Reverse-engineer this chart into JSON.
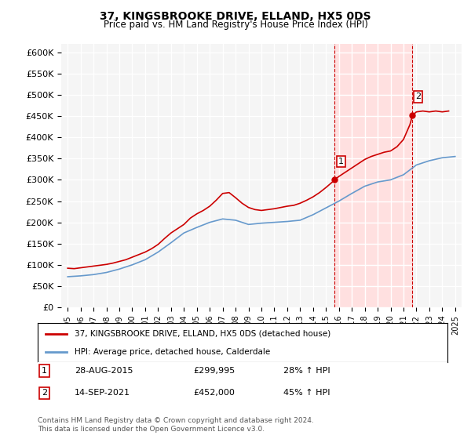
{
  "title": "37, KINGSBROOKE DRIVE, ELLAND, HX5 0DS",
  "subtitle": "Price paid vs. HM Land Registry's House Price Index (HPI)",
  "property_label": "37, KINGSBROOKE DRIVE, ELLAND, HX5 0DS (detached house)",
  "hpi_label": "HPI: Average price, detached house, Calderdale",
  "transaction1_label": "1",
  "transaction1_date": "28-AUG-2015",
  "transaction1_price": "£299,995",
  "transaction1_hpi": "28% ↑ HPI",
  "transaction2_label": "2",
  "transaction2_date": "14-SEP-2021",
  "transaction2_price": "£452,000",
  "transaction2_hpi": "45% ↑ HPI",
  "footer": "Contains HM Land Registry data © Crown copyright and database right 2024.\nThis data is licensed under the Open Government Licence v3.0.",
  "property_color": "#cc0000",
  "hpi_color": "#6699cc",
  "highlight_color": "#ffe0e0",
  "dashed_line_color": "#cc0000",
  "transaction1_x": 2015.65,
  "transaction2_x": 2021.7,
  "ylim_min": 0,
  "ylim_max": 620000,
  "yticks": [
    0,
    50000,
    100000,
    150000,
    200000,
    250000,
    300000,
    350000,
    400000,
    450000,
    500000,
    550000,
    600000
  ],
  "xlim_min": 1994.5,
  "xlim_max": 2025.5,
  "background_color": "#ffffff",
  "plot_bg_color": "#f5f5f5",
  "grid_color": "#ffffff",
  "years": [
    1995,
    1996,
    1997,
    1998,
    1999,
    2000,
    2001,
    2002,
    2003,
    2004,
    2005,
    2006,
    2007,
    2008,
    2009,
    2010,
    2011,
    2012,
    2013,
    2014,
    2015,
    2016,
    2017,
    2018,
    2019,
    2020,
    2021,
    2022,
    2023,
    2024,
    2025
  ],
  "hpi_values": [
    72000,
    74000,
    77000,
    82000,
    90000,
    100000,
    112000,
    130000,
    152000,
    175000,
    188000,
    200000,
    208000,
    205000,
    195000,
    198000,
    200000,
    202000,
    205000,
    218000,
    234000,
    250000,
    268000,
    285000,
    295000,
    300000,
    312000,
    335000,
    345000,
    352000,
    355000
  ],
  "property_values_x": [
    1995.0,
    1995.5,
    1996.0,
    1996.5,
    1997.0,
    1997.5,
    1998.0,
    1998.5,
    1999.0,
    1999.5,
    2000.0,
    2000.5,
    2001.0,
    2001.5,
    2002.0,
    2002.5,
    2003.0,
    2003.5,
    2004.0,
    2004.5,
    2005.0,
    2005.5,
    2006.0,
    2006.5,
    2007.0,
    2007.5,
    2008.0,
    2008.5,
    2009.0,
    2009.5,
    2010.0,
    2010.5,
    2011.0,
    2011.5,
    2012.0,
    2012.5,
    2013.0,
    2013.5,
    2014.0,
    2014.5,
    2015.0,
    2015.5,
    2015.65,
    2016.0,
    2016.5,
    2017.0,
    2017.5,
    2018.0,
    2018.5,
    2019.0,
    2019.5,
    2020.0,
    2020.5,
    2021.0,
    2021.5,
    2021.7,
    2022.0,
    2022.5,
    2023.0,
    2023.5,
    2024.0,
    2024.5
  ],
  "property_values_y": [
    92000,
    91000,
    93000,
    95000,
    97000,
    99000,
    101000,
    104000,
    108000,
    112000,
    118000,
    124000,
    130000,
    138000,
    148000,
    162000,
    175000,
    185000,
    195000,
    210000,
    220000,
    228000,
    238000,
    252000,
    268000,
    270000,
    258000,
    245000,
    235000,
    230000,
    228000,
    230000,
    232000,
    235000,
    238000,
    240000,
    245000,
    252000,
    260000,
    270000,
    282000,
    295000,
    299995,
    308000,
    318000,
    328000,
    338000,
    348000,
    355000,
    360000,
    365000,
    368000,
    378000,
    395000,
    430000,
    452000,
    460000,
    462000,
    460000,
    462000,
    460000,
    462000
  ]
}
